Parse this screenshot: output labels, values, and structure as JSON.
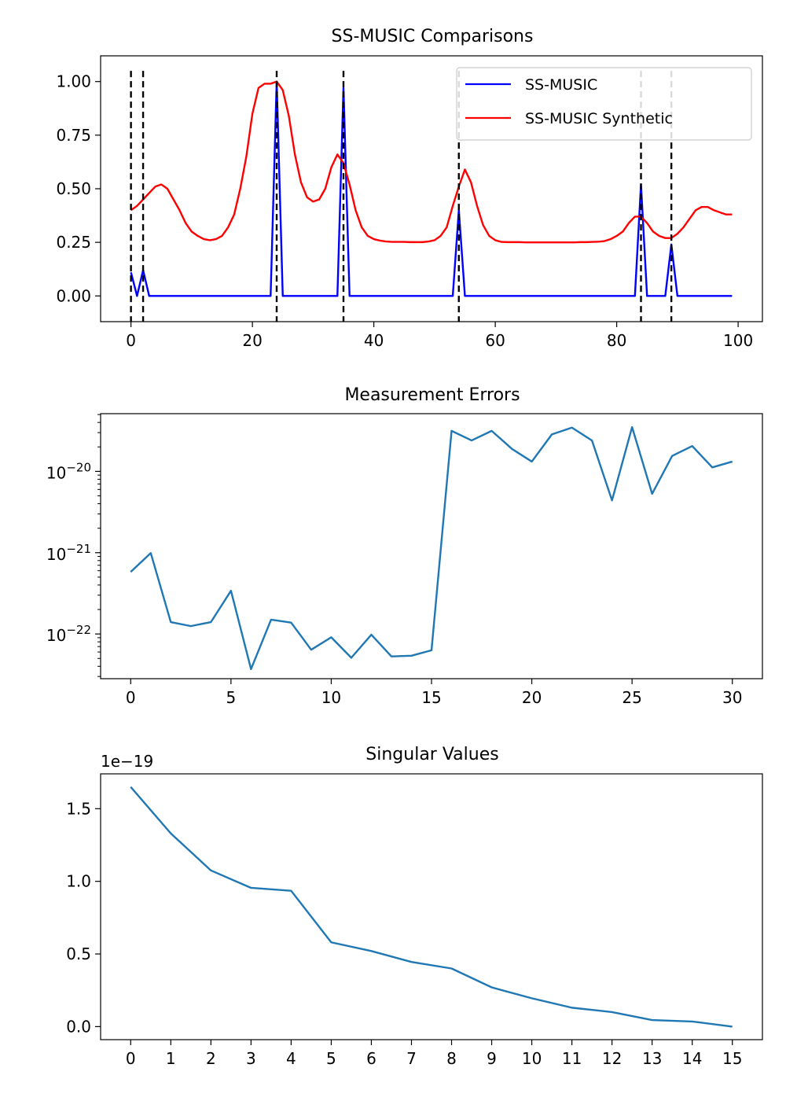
{
  "chart_data": [
    {
      "type": "line",
      "title": "SS-MUSIC Comparisons",
      "xlabel": "",
      "ylabel": "",
      "xlim": [
        -5,
        104
      ],
      "ylim": [
        -0.12,
        1.12
      ],
      "xticks": [
        0,
        20,
        40,
        60,
        80,
        100
      ],
      "xtick_labels": [
        "0",
        "20",
        "40",
        "60",
        "80",
        "100"
      ],
      "yticks": [
        0.0,
        0.25,
        0.5,
        0.75,
        1.0
      ],
      "ytick_labels": [
        "0.00",
        "0.25",
        "0.50",
        "0.75",
        "1.00"
      ],
      "legend_position": "top-right",
      "vlines": {
        "x": [
          0,
          2,
          24,
          35,
          54,
          84,
          89
        ],
        "style": "dashed",
        "color": "#000000",
        "ymin": -0.12,
        "ymax": 1.05
      },
      "series": [
        {
          "name": "SS-MUSIC",
          "color": "#0000ff",
          "x": [
            0,
            1,
            2,
            3,
            23,
            24,
            25,
            34,
            35,
            36,
            53,
            54,
            55,
            83,
            84,
            85,
            88,
            89,
            90,
            99
          ],
          "y": [
            0.11,
            0.0,
            0.12,
            0.0,
            0.0,
            1.0,
            0.0,
            0.0,
            0.97,
            0.0,
            0.0,
            0.4,
            0.0,
            0.0,
            0.52,
            0.0,
            0.0,
            0.24,
            0.0,
            0.0
          ]
        },
        {
          "name": "SS-MUSIC Synthetic",
          "color": "#ff0000",
          "x": [
            0,
            1,
            2,
            3,
            4,
            5,
            6,
            7,
            8,
            9,
            10,
            11,
            12,
            13,
            14,
            15,
            16,
            17,
            18,
            19,
            20,
            21,
            22,
            23,
            24,
            25,
            26,
            27,
            28,
            29,
            30,
            31,
            32,
            33,
            34,
            35,
            36,
            37,
            38,
            39,
            40,
            41,
            42,
            43,
            44,
            45,
            46,
            47,
            48,
            49,
            50,
            51,
            52,
            53,
            54,
            55,
            56,
            57,
            58,
            59,
            60,
            61,
            62,
            63,
            64,
            65,
            66,
            67,
            68,
            69,
            70,
            71,
            72,
            73,
            74,
            75,
            76,
            77,
            78,
            79,
            80,
            81,
            82,
            83,
            84,
            85,
            86,
            87,
            88,
            89,
            90,
            91,
            92,
            93,
            94,
            95,
            96,
            97,
            98,
            99
          ],
          "y": [
            0.4,
            0.42,
            0.45,
            0.48,
            0.51,
            0.52,
            0.5,
            0.45,
            0.4,
            0.34,
            0.3,
            0.28,
            0.265,
            0.26,
            0.265,
            0.28,
            0.32,
            0.38,
            0.5,
            0.65,
            0.85,
            0.97,
            0.99,
            0.99,
            1.0,
            0.96,
            0.84,
            0.66,
            0.53,
            0.46,
            0.44,
            0.45,
            0.5,
            0.6,
            0.66,
            0.62,
            0.52,
            0.4,
            0.32,
            0.28,
            0.265,
            0.258,
            0.254,
            0.252,
            0.252,
            0.252,
            0.251,
            0.251,
            0.251,
            0.254,
            0.26,
            0.28,
            0.32,
            0.42,
            0.51,
            0.59,
            0.53,
            0.42,
            0.33,
            0.28,
            0.26,
            0.252,
            0.251,
            0.251,
            0.251,
            0.25,
            0.25,
            0.25,
            0.25,
            0.25,
            0.25,
            0.25,
            0.25,
            0.25,
            0.251,
            0.251,
            0.252,
            0.253,
            0.256,
            0.265,
            0.28,
            0.3,
            0.34,
            0.37,
            0.37,
            0.34,
            0.3,
            0.28,
            0.27,
            0.27,
            0.29,
            0.32,
            0.36,
            0.4,
            0.415,
            0.415,
            0.4,
            0.39,
            0.38,
            0.38
          ]
        }
      ]
    },
    {
      "type": "line",
      "title": "Measurement Errors",
      "xlabel": "",
      "ylabel": "",
      "yscale": "log",
      "xlim": [
        -1.5,
        31.5
      ],
      "ylim_log10": [
        -22.55,
        -19.29
      ],
      "xticks": [
        0,
        5,
        10,
        15,
        20,
        25,
        30
      ],
      "xtick_labels": [
        "0",
        "5",
        "10",
        "15",
        "20",
        "25",
        "30"
      ],
      "ytick_labels": [
        {
          "base": "10",
          "exp": "−22",
          "value": 1e-22
        },
        {
          "base": "10",
          "exp": "−21",
          "value": 1e-21
        },
        {
          "base": "10",
          "exp": "−20",
          "value": 1e-20
        }
      ],
      "series": [
        {
          "color": "#1f77b4",
          "x": [
            0,
            1,
            2,
            3,
            4,
            5,
            6,
            7,
            8,
            9,
            10,
            11,
            12,
            13,
            14,
            15,
            16,
            17,
            18,
            19,
            20,
            21,
            22,
            23,
            24,
            25,
            26,
            27,
            28,
            29,
            30
          ],
          "y": [
            5.8e-22,
            9.9e-22,
            1.4e-22,
            1.25e-22,
            1.4e-22,
            3.4e-22,
            3.7e-23,
            1.5e-22,
            1.38e-22,
            6.4e-23,
            9.1e-23,
            5.1e-23,
            9.8e-23,
            5.3e-23,
            5.4e-23,
            6.3e-23,
            3.15e-20,
            2.4e-20,
            3.15e-20,
            1.9e-20,
            1.32e-20,
            2.85e-20,
            3.45e-20,
            2.4e-20,
            4.4e-21,
            3.5e-20,
            5.3e-21,
            1.55e-20,
            2.05e-20,
            1.12e-20,
            1.32e-20
          ]
        }
      ]
    },
    {
      "type": "line",
      "title": "Singular Values",
      "xlabel": "",
      "ylabel": "",
      "offset_text": "1e−19",
      "scale": 1e-19,
      "xlim": [
        -0.75,
        15.75
      ],
      "ylim": [
        -0.09,
        1.74
      ],
      "xticks": [
        0,
        1,
        2,
        3,
        4,
        5,
        6,
        7,
        8,
        9,
        10,
        11,
        12,
        13,
        14,
        15
      ],
      "xtick_labels": [
        "0",
        "1",
        "2",
        "3",
        "4",
        "5",
        "6",
        "7",
        "8",
        "9",
        "10",
        "11",
        "12",
        "13",
        "14",
        "15"
      ],
      "yticks": [
        0.0,
        0.5,
        1.0,
        1.5
      ],
      "ytick_labels": [
        "0.0",
        "0.5",
        "1.0",
        "1.5"
      ],
      "series": [
        {
          "color": "#1f77b4",
          "x": [
            0,
            1,
            2,
            3,
            4,
            5,
            6,
            7,
            8,
            9,
            10,
            11,
            12,
            13,
            14,
            15
          ],
          "y": [
            1.65,
            1.33,
            1.075,
            0.955,
            0.935,
            0.58,
            0.52,
            0.445,
            0.4,
            0.27,
            0.195,
            0.13,
            0.1,
            0.045,
            0.035,
            0.0
          ]
        }
      ]
    }
  ]
}
